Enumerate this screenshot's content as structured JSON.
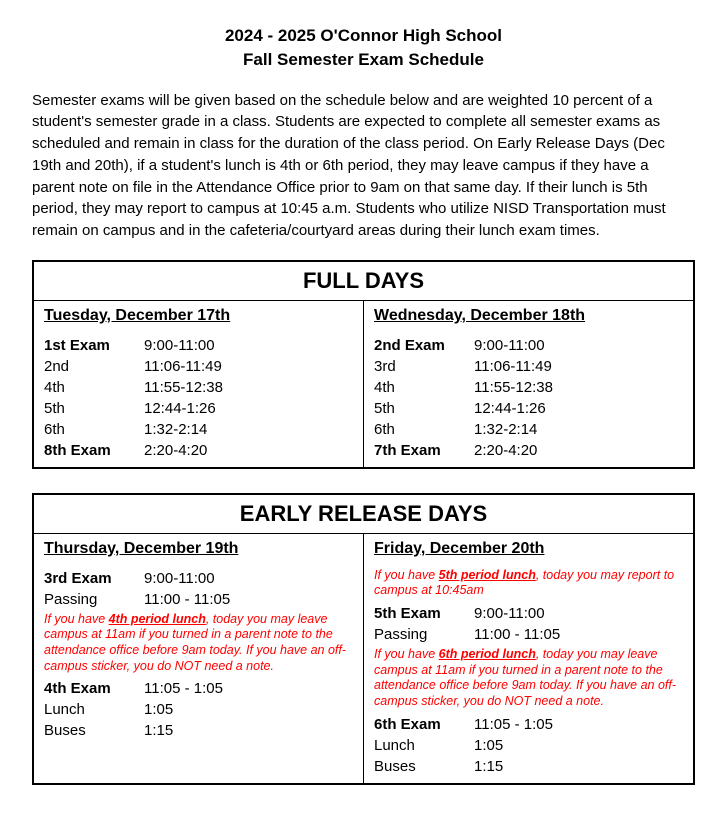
{
  "title_line1": "2024 - 2025 O'Connor High School",
  "title_line2": "Fall Semester Exam Schedule",
  "intro": "Semester exams will be given based on the schedule below and are weighted 10 percent of a student's semester grade in a class. Students are expected to complete all semester exams as scheduled and remain in class for the duration of the class period. On Early Release Days (Dec 19th and 20th), if a student's lunch is 4th or 6th period, they may leave campus if they have a parent note on file in the Attendance Office prior to 9am on that same day. If their lunch is 5th period, they may report to campus at 10:45 a.m. Students who utilize NISD Transportation must remain on campus and in the cafeteria/courtyard areas during their lunch exam times.",
  "full_days": {
    "header": "FULL DAYS",
    "left": {
      "day": "Tuesday, December 17th",
      "rows": [
        {
          "label": "1st Exam",
          "time": "9:00-11:00",
          "bold": true
        },
        {
          "label": "2nd",
          "time": "11:06-11:49"
        },
        {
          "label": "4th",
          "time": "11:55-12:38"
        },
        {
          "label": "5th",
          "time": "12:44-1:26"
        },
        {
          "label": "6th",
          "time": "1:32-2:14"
        },
        {
          "label": "8th Exam",
          "time": "2:20-4:20",
          "bold": true
        }
      ]
    },
    "right": {
      "day": "Wednesday, December 18th",
      "rows": [
        {
          "label": "2nd Exam",
          "time": "9:00-11:00",
          "bold": true
        },
        {
          "label": "3rd",
          "time": "11:06-11:49"
        },
        {
          "label": "4th",
          "time": "11:55-12:38"
        },
        {
          "label": "5th",
          "time": "12:44-1:26"
        },
        {
          "label": "6th",
          "time": "1:32-2:14"
        },
        {
          "label": "7th Exam",
          "time": "2:20-4:20",
          "bold": true
        }
      ]
    }
  },
  "early_days": {
    "header": "EARLY RELEASE DAYS",
    "left": {
      "day": "Thursday, December 19th",
      "note_top": null,
      "rows1": [
        {
          "label": "3rd Exam",
          "time": "9:00-11:00",
          "bold": true
        },
        {
          "label": "Passing",
          "time": "11:00 - 11:05"
        }
      ],
      "note_mid_pre": "If you have ",
      "note_mid_u": "4th period lunch",
      "note_mid_post": ", today you may leave campus at 11am if you turned in a parent note to the attendance office before 9am today. If you have an off-campus sticker, you do NOT need a note.",
      "rows2": [
        {
          "label": "4th Exam",
          "time": "11:05 - 1:05",
          "bold": true
        },
        {
          "label": "Lunch",
          "time": "1:05"
        },
        {
          "label": "Buses",
          "time": "1:15"
        }
      ]
    },
    "right": {
      "day": "Friday, December 20th",
      "note_top_pre": "If you have ",
      "note_top_u": "5th period lunch",
      "note_top_post": ", today you may report to campus at 10:45am",
      "rows1": [
        {
          "label": "5th Exam",
          "time": "9:00-11:00",
          "bold": true
        },
        {
          "label": "Passing",
          "time": "11:00 - 11:05"
        }
      ],
      "note_mid_pre": "If you have ",
      "note_mid_u": "6th period lunch",
      "note_mid_post": ", today you may leave campus at 11am if you turned in a parent note to the attendance office before 9am today. If you have an off-campus sticker, you do NOT need a note.",
      "rows2": [
        {
          "label": "6th Exam",
          "time": "11:05 - 1:05",
          "bold": true
        },
        {
          "label": "Lunch",
          "time": "1:05"
        },
        {
          "label": "Buses",
          "time": "1:15"
        }
      ]
    }
  }
}
